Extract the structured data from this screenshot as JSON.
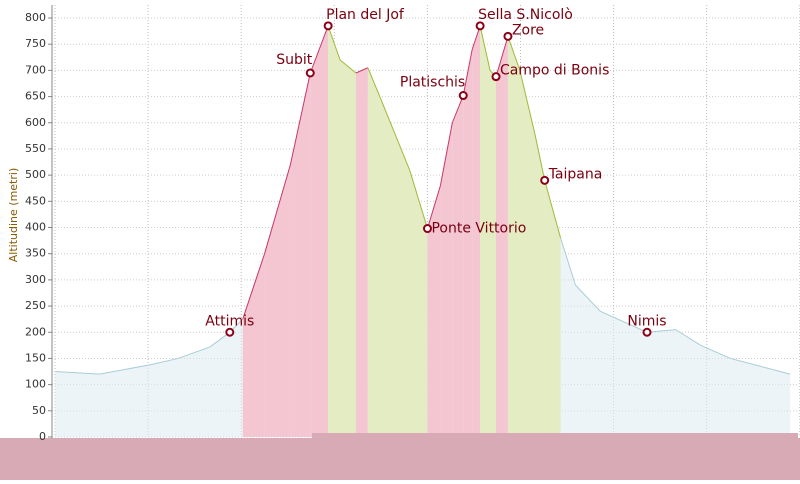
{
  "chart_data": {
    "type": "area",
    "y_label": "Altitudine (metri)",
    "x": [
      0.3,
      4.8,
      9.9,
      12.7,
      15.9,
      17.9,
      19.2,
      21.4,
      24,
      26,
      27.8,
      29,
      30.6,
      31.8,
      33,
      34.5,
      36,
      37.8,
      39.1,
      40.3,
      41.4,
      42.3,
      43.1,
      44.1,
      44.7,
      45.9,
      47.1,
      48.6,
      49.6,
      51.2,
      52.7,
      55.2,
      59.9,
      62.8,
      65.3,
      68.3,
      71.3,
      74.3
    ],
    "values": [
      125,
      120,
      138,
      150,
      172,
      200,
      225,
      350,
      520,
      695,
      785,
      720,
      695,
      705,
      650,
      580,
      510,
      398,
      480,
      600,
      652,
      740,
      785,
      700,
      688,
      765,
      700,
      580,
      490,
      380,
      290,
      240,
      200,
      205,
      175,
      150,
      135,
      120
    ],
    "color": "#dcebf0",
    "ascent_color": "#f3c6d2",
    "descent_color": "#e3ecc2",
    "highlight_range": [
      19.2,
      51.2
    ],
    "annotations": [
      {
        "label": "Attimis",
        "x": 17.9,
        "value": 200
      },
      {
        "label": "Subit",
        "x": 26,
        "value": 695
      },
      {
        "label": "Plan del Jof",
        "x": 27.8,
        "value": 785
      },
      {
        "label": "Platischis",
        "x": 41.4,
        "value": 652
      },
      {
        "label": "Sella S.Nicolò",
        "x": 43.1,
        "value": 785
      },
      {
        "label": "Zore",
        "x": 45.9,
        "value": 765
      },
      {
        "label": "Campo di Bonis",
        "x": 44.7,
        "value": 688
      },
      {
        "label": "Taipana",
        "x": 49.6,
        "value": 490
      },
      {
        "label": "Ponte Vittorio",
        "x": 37.8,
        "value": 398
      },
      {
        "label": "Nimis",
        "x": 59.9,
        "value": 200
      }
    ],
    "xlim": [
      0,
      75
    ],
    "ylim": [
      0,
      800
    ],
    "yticks": [
      0,
      50,
      100,
      150,
      200,
      250,
      300,
      350,
      400,
      450,
      500,
      550,
      600,
      650,
      700,
      750,
      800
    ],
    "grid": true
  }
}
